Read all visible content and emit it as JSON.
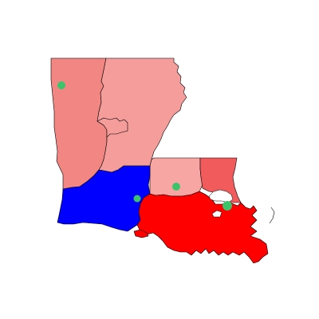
{
  "map": {
    "region": "Louisiana",
    "background": "#ffffff",
    "regions": [
      {
        "id": "north-west-district",
        "color": "#F18683"
      },
      {
        "id": "north-east-district",
        "color": "#F49D9B"
      },
      {
        "id": "capital-district",
        "color": "#F7A6A4"
      },
      {
        "id": "east-district",
        "color": "#F25B5B"
      },
      {
        "id": "south-west-district",
        "color": "#0000FF"
      },
      {
        "id": "south-east-district",
        "color": "#FF0000"
      }
    ],
    "markers": [
      {
        "id": "marker-north-west",
        "color": "#3CC46B"
      },
      {
        "id": "marker-south-central",
        "color": "#3CC46B"
      },
      {
        "id": "marker-capital",
        "color": "#3CC46B"
      },
      {
        "id": "marker-new-orleans",
        "color": "#3CC46B"
      }
    ]
  }
}
